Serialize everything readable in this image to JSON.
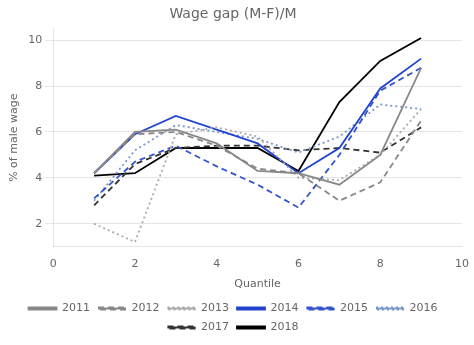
{
  "chart_data": {
    "type": "line",
    "title": "Wage gap (M-F)/M",
    "x_label": "Quantile",
    "y_label": "% of male wage",
    "x": [
      1,
      2,
      3,
      4,
      5,
      6,
      7,
      8,
      9
    ],
    "xlim": [
      0,
      10
    ],
    "xticks": [
      0,
      2,
      4,
      6,
      8,
      10
    ],
    "ylim": [
      1,
      10.5
    ],
    "yticks": [
      2,
      4,
      6,
      8,
      10
    ],
    "grid": "y",
    "legend": "bottom",
    "series": [
      {
        "name": "2011",
        "color": "#888888",
        "line_style": "solid",
        "values": [
          4.2,
          6.0,
          6.1,
          5.5,
          4.3,
          4.2,
          3.7,
          5.0,
          8.8
        ]
      },
      {
        "name": "2012",
        "color": "#888888",
        "line_style": "dashed",
        "values": [
          4.2,
          5.9,
          6.0,
          5.4,
          4.4,
          4.2,
          3.0,
          3.8,
          6.5
        ]
      },
      {
        "name": "2013",
        "color": "#aaaaaa",
        "line_style": "dotted",
        "values": [
          2.0,
          1.2,
          5.9,
          6.2,
          5.8,
          4.0,
          3.9,
          5.0,
          7.0
        ]
      },
      {
        "name": "2014",
        "color": "#2244cc",
        "line_style": "solid",
        "values": [
          4.2,
          5.9,
          6.7,
          6.1,
          5.5,
          4.2,
          5.3,
          7.9,
          9.2
        ]
      },
      {
        "name": "2015",
        "color": "#3355cc",
        "line_style": "dashed",
        "values": [
          3.1,
          4.7,
          5.4,
          4.5,
          3.7,
          2.7,
          5.0,
          7.8,
          8.8
        ]
      },
      {
        "name": "2016",
        "color": "#7799cc",
        "line_style": "dotted",
        "values": [
          3.0,
          5.2,
          6.3,
          6.0,
          5.7,
          5.1,
          5.8,
          7.2,
          7.0
        ]
      },
      {
        "name": "2017",
        "color": "#333333",
        "line_style": "dashed",
        "values": [
          2.8,
          4.6,
          5.3,
          5.4,
          5.4,
          5.2,
          5.3,
          5.1,
          6.2
        ]
      },
      {
        "name": "2018",
        "color": "#000000",
        "line_style": "solid",
        "values": [
          4.1,
          4.2,
          5.3,
          5.3,
          5.3,
          4.3,
          7.3,
          9.1,
          10.1
        ]
      }
    ]
  }
}
